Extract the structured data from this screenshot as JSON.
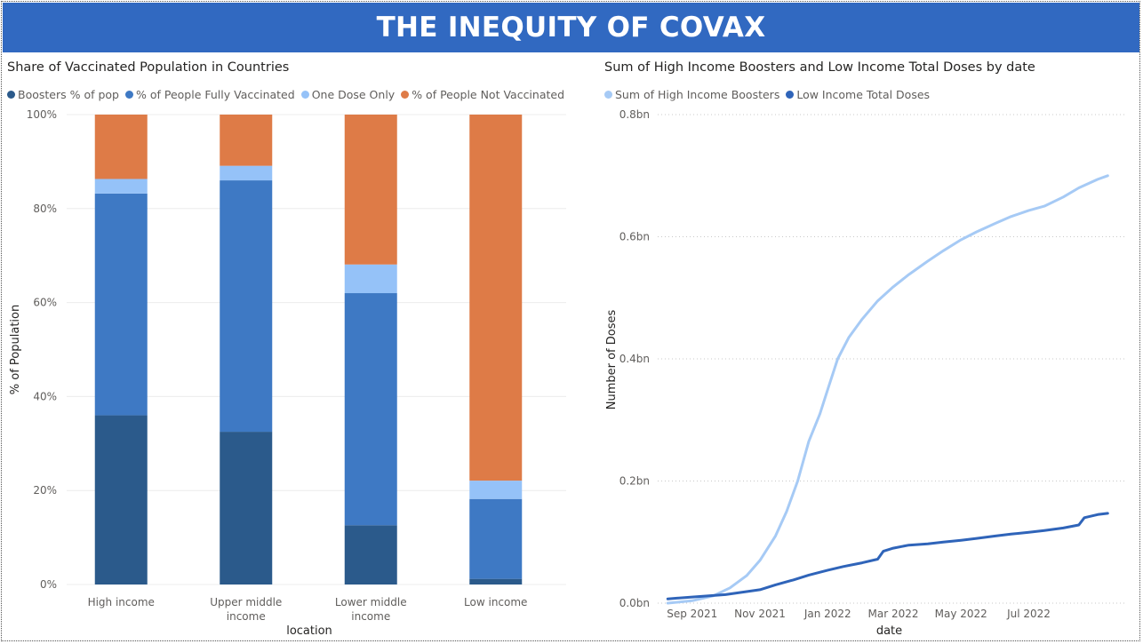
{
  "header": {
    "title": "THE INEQUITY OF COVAX"
  },
  "colors": {
    "banner": "#3169c1",
    "boosters": "#2b5a8b",
    "fully_vaccinated": "#3e79c4",
    "one_dose": "#95c2f8",
    "not_vaccinated": "#de7b47",
    "high_income_boosters_line": "#a6caf5",
    "low_income_doses_line": "#2f64b9"
  },
  "chart_data": [
    {
      "type": "bar",
      "stacked": true,
      "title": "Share of Vaccinated Population in Countries",
      "xlabel": "location",
      "ylabel": "% of Population",
      "ylim": [
        0,
        100
      ],
      "y_ticks": [
        "0%",
        "20%",
        "40%",
        "60%",
        "80%",
        "100%"
      ],
      "categories": [
        "High income",
        "Upper middle income",
        "Lower middle income",
        "Low income"
      ],
      "category_lines": [
        [
          "High income"
        ],
        [
          "Upper middle",
          "income"
        ],
        [
          "Lower middle",
          "income"
        ],
        [
          "Low income"
        ]
      ],
      "series": [
        {
          "name": "Boosters % of pop",
          "values": [
            36,
            32.5,
            12.6,
            1.2
          ]
        },
        {
          "name": "% of People Fully Vaccinated",
          "values": [
            47.2,
            53.5,
            49.4,
            17
          ]
        },
        {
          "name": "One Dose Only",
          "values": [
            3.1,
            3.1,
            6.1,
            3.9
          ]
        },
        {
          "name": "% of People Not Vaccinated",
          "values": [
            13.7,
            10.9,
            31.9,
            77.9
          ]
        }
      ],
      "legend_position": "top-left",
      "grid": true
    },
    {
      "type": "line",
      "title": "Sum of High Income Boosters and Low Income Total Doses by date",
      "xlabel": "date",
      "ylabel": "Number of Doses",
      "ylim": [
        0,
        0.8
      ],
      "y_unit": "billion doses",
      "y_ticks": [
        "0.0bn",
        "0.2bn",
        "0.4bn",
        "0.6bn",
        "0.8bn"
      ],
      "x_ticks": [
        "Sep 2021",
        "Nov 2021",
        "Jan 2022",
        "Mar 2022",
        "May 2022",
        "Jul 2022"
      ],
      "x_tick_dates": [
        "2021-09-01",
        "2021-11-01",
        "2022-01-01",
        "2022-03-01",
        "2022-05-01",
        "2022-07-01"
      ],
      "legend_position": "top-left",
      "grid": true,
      "series": [
        {
          "name": "Sum of High Income Boosters",
          "points": [
            [
              "2021-08-10",
              0.0
            ],
            [
              "2021-09-01",
              0.004
            ],
            [
              "2021-09-20",
              0.012
            ],
            [
              "2021-10-05",
              0.025
            ],
            [
              "2021-10-20",
              0.045
            ],
            [
              "2021-11-01",
              0.07
            ],
            [
              "2021-11-15",
              0.11
            ],
            [
              "2021-11-25",
              0.15
            ],
            [
              "2021-12-05",
              0.2
            ],
            [
              "2021-12-15",
              0.265
            ],
            [
              "2021-12-25",
              0.31
            ],
            [
              "2022-01-01",
              0.35
            ],
            [
              "2022-01-10",
              0.4
            ],
            [
              "2022-01-20",
              0.435
            ],
            [
              "2022-02-01",
              0.465
            ],
            [
              "2022-02-15",
              0.495
            ],
            [
              "2022-03-01",
              0.518
            ],
            [
              "2022-03-15",
              0.538
            ],
            [
              "2022-04-01",
              0.56
            ],
            [
              "2022-04-15",
              0.577
            ],
            [
              "2022-05-01",
              0.595
            ],
            [
              "2022-05-15",
              0.608
            ],
            [
              "2022-06-01",
              0.622
            ],
            [
              "2022-06-15",
              0.633
            ],
            [
              "2022-07-01",
              0.643
            ],
            [
              "2022-07-15",
              0.65
            ],
            [
              "2022-08-01",
              0.665
            ],
            [
              "2022-08-15",
              0.68
            ],
            [
              "2022-09-01",
              0.694
            ],
            [
              "2022-09-10",
              0.7
            ]
          ]
        },
        {
          "name": "Low Income Total Doses",
          "points": [
            [
              "2021-08-10",
              0.007
            ],
            [
              "2021-09-01",
              0.01
            ],
            [
              "2021-10-01",
              0.014
            ],
            [
              "2021-11-01",
              0.022
            ],
            [
              "2021-11-15",
              0.03
            ],
            [
              "2021-12-01",
              0.038
            ],
            [
              "2021-12-15",
              0.046
            ],
            [
              "2022-01-01",
              0.054
            ],
            [
              "2022-01-15",
              0.06
            ],
            [
              "2022-02-01",
              0.066
            ],
            [
              "2022-02-15",
              0.072
            ],
            [
              "2022-02-20",
              0.085
            ],
            [
              "2022-03-01",
              0.09
            ],
            [
              "2022-03-15",
              0.095
            ],
            [
              "2022-04-01",
              0.097
            ],
            [
              "2022-04-15",
              0.1
            ],
            [
              "2022-05-01",
              0.103
            ],
            [
              "2022-05-15",
              0.106
            ],
            [
              "2022-06-01",
              0.11
            ],
            [
              "2022-06-15",
              0.113
            ],
            [
              "2022-07-01",
              0.116
            ],
            [
              "2022-07-15",
              0.119
            ],
            [
              "2022-08-01",
              0.123
            ],
            [
              "2022-08-15",
              0.128
            ],
            [
              "2022-08-20",
              0.14
            ],
            [
              "2022-09-01",
              0.145
            ],
            [
              "2022-09-10",
              0.147
            ]
          ]
        }
      ]
    }
  ]
}
